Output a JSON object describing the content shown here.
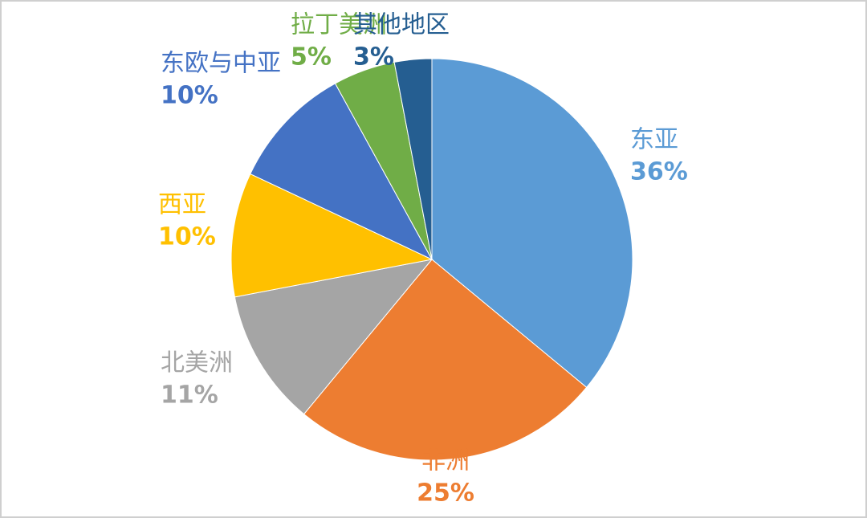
{
  "chart_data": {
    "type": "pie",
    "categories": [
      "东亚",
      "非洲",
      "北美洲",
      "西亚",
      "东欧与中亚",
      "拉丁美洲",
      "其他地区"
    ],
    "values": [
      36,
      25,
      11,
      10,
      10,
      5,
      3
    ],
    "value_labels": [
      "36%",
      "25%",
      "11%",
      "10%",
      "10%",
      "5%",
      "3%"
    ],
    "colors": [
      "#5b9bd5",
      "#ed7d31",
      "#a5a5a5",
      "#ffc000",
      "#4472c4",
      "#70ad47",
      "#255e91"
    ]
  }
}
